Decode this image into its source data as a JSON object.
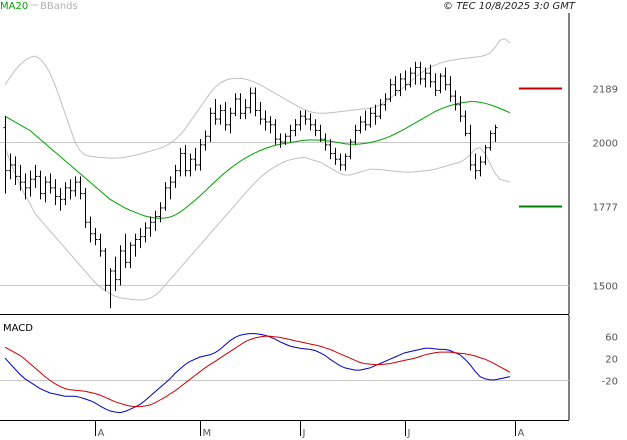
{
  "header": {
    "legend_ma": "MA20",
    "legend_bb": "BBands",
    "copyright": "© TEC 10/8/2025 3:0 GMT"
  },
  "colors": {
    "price": "#000000",
    "ma": "#00a000",
    "bbands": "#c0c0c0",
    "resistance": "#c00000",
    "support": "#008000",
    "macd": "#0000c0",
    "signal": "#d00000",
    "grid": "#c8c8c8"
  },
  "chart_data": [
    {
      "type": "ohlc",
      "ylim": [
        1400,
        2450
      ],
      "y_ticks": [
        {
          "value": 2000,
          "label": "2000"
        },
        {
          "value": 1500,
          "label": "1500"
        }
      ],
      "x_ticks": [
        {
          "index": 18,
          "label": "A"
        },
        {
          "index": 39,
          "label": "M"
        },
        {
          "index": 59,
          "label": "J"
        },
        {
          "index": 80,
          "label": "J"
        },
        {
          "index": 102,
          "label": "A"
        }
      ],
      "levels": [
        {
          "name": "resistance",
          "value": 2189,
          "label": "2189"
        },
        {
          "name": "support",
          "value": 1777,
          "label": "1777"
        }
      ],
      "ohlc": [
        [
          2050,
          2090,
          1820,
          1900
        ],
        [
          1900,
          1960,
          1870,
          1920
        ],
        [
          1920,
          1950,
          1850,
          1880
        ],
        [
          1880,
          1920,
          1830,
          1860
        ],
        [
          1860,
          1890,
          1800,
          1840
        ],
        [
          1840,
          1900,
          1810,
          1870
        ],
        [
          1870,
          1920,
          1840,
          1880
        ],
        [
          1880,
          1900,
          1800,
          1820
        ],
        [
          1820,
          1880,
          1790,
          1860
        ],
        [
          1860,
          1890,
          1820,
          1840
        ],
        [
          1840,
          1870,
          1780,
          1810
        ],
        [
          1810,
          1840,
          1760,
          1800
        ],
        [
          1800,
          1860,
          1780,
          1840
        ],
        [
          1840,
          1870,
          1800,
          1830
        ],
        [
          1830,
          1880,
          1810,
          1860
        ],
        [
          1860,
          1880,
          1800,
          1820
        ],
        [
          1820,
          1840,
          1700,
          1720
        ],
        [
          1720,
          1740,
          1650,
          1680
        ],
        [
          1680,
          1700,
          1640,
          1660
        ],
        [
          1660,
          1680,
          1600,
          1620
        ],
        [
          1620,
          1630,
          1480,
          1500
        ],
        [
          1500,
          1560,
          1420,
          1550
        ],
        [
          1550,
          1600,
          1480,
          1520
        ],
        [
          1520,
          1640,
          1500,
          1620
        ],
        [
          1620,
          1680,
          1560,
          1580
        ],
        [
          1580,
          1650,
          1560,
          1640
        ],
        [
          1640,
          1680,
          1600,
          1660
        ],
        [
          1660,
          1700,
          1630,
          1670
        ],
        [
          1670,
          1720,
          1650,
          1700
        ],
        [
          1700,
          1740,
          1670,
          1720
        ],
        [
          1720,
          1760,
          1690,
          1740
        ],
        [
          1740,
          1790,
          1720,
          1770
        ],
        [
          1770,
          1860,
          1760,
          1840
        ],
        [
          1840,
          1880,
          1800,
          1860
        ],
        [
          1860,
          1920,
          1840,
          1900
        ],
        [
          1900,
          1980,
          1880,
          1960
        ],
        [
          1960,
          1990,
          1880,
          1900
        ],
        [
          1900,
          1960,
          1880,
          1940
        ],
        [
          1940,
          1980,
          1900,
          1920
        ],
        [
          1920,
          2010,
          1900,
          1990
        ],
        [
          1990,
          2040,
          1970,
          2020
        ],
        [
          2020,
          2120,
          2000,
          2100
        ],
        [
          2100,
          2150,
          2060,
          2080
        ],
        [
          2080,
          2130,
          2060,
          2110
        ],
        [
          2110,
          2140,
          2040,
          2060
        ],
        [
          2060,
          2120,
          2030,
          2100
        ],
        [
          2100,
          2170,
          2090,
          2150
        ],
        [
          2150,
          2170,
          2080,
          2100
        ],
        [
          2100,
          2150,
          2080,
          2120
        ],
        [
          2120,
          2190,
          2100,
          2170
        ],
        [
          2170,
          2190,
          2090,
          2110
        ],
        [
          2110,
          2140,
          2060,
          2080
        ],
        [
          2080,
          2110,
          2040,
          2070
        ],
        [
          2070,
          2090,
          2030,
          2060
        ],
        [
          2060,
          2080,
          1990,
          2010
        ],
        [
          2010,
          2030,
          1980,
          2000
        ],
        [
          2000,
          2030,
          1990,
          2020
        ],
        [
          2020,
          2060,
          2000,
          2040
        ],
        [
          2040,
          2080,
          2020,
          2060
        ],
        [
          2060,
          2110,
          2040,
          2090
        ],
        [
          2090,
          2110,
          2060,
          2080
        ],
        [
          2080,
          2100,
          2040,
          2060
        ],
        [
          2060,
          2080,
          2020,
          2040
        ],
        [
          2040,
          2060,
          2000,
          2010
        ],
        [
          2010,
          2030,
          1970,
          1990
        ],
        [
          1990,
          2010,
          1940,
          1960
        ],
        [
          1960,
          1980,
          1920,
          1940
        ],
        [
          1940,
          1960,
          1900,
          1920
        ],
        [
          1920,
          1960,
          1900,
          1950
        ],
        [
          1950,
          2010,
          1940,
          2000
        ],
        [
          2000,
          2060,
          1990,
          2040
        ],
        [
          2040,
          2090,
          2030,
          2070
        ],
        [
          2070,
          2110,
          2040,
          2060
        ],
        [
          2060,
          2120,
          2050,
          2100
        ],
        [
          2100,
          2130,
          2060,
          2090
        ],
        [
          2090,
          2150,
          2080,
          2130
        ],
        [
          2130,
          2170,
          2110,
          2150
        ],
        [
          2150,
          2220,
          2140,
          2200
        ],
        [
          2200,
          2230,
          2160,
          2180
        ],
        [
          2180,
          2240,
          2160,
          2220
        ],
        [
          2220,
          2250,
          2180,
          2200
        ],
        [
          2200,
          2260,
          2190,
          2240
        ],
        [
          2240,
          2280,
          2200,
          2260
        ],
        [
          2260,
          2280,
          2200,
          2220
        ],
        [
          2220,
          2260,
          2190,
          2240
        ],
        [
          2240,
          2270,
          2190,
          2210
        ],
        [
          2210,
          2240,
          2160,
          2180
        ],
        [
          2180,
          2240,
          2170,
          2230
        ],
        [
          2230,
          2260,
          2180,
          2200
        ],
        [
          2200,
          2230,
          2140,
          2160
        ],
        [
          2160,
          2180,
          2110,
          2130
        ],
        [
          2130,
          2160,
          2070,
          2090
        ],
        [
          2090,
          2110,
          2020,
          2030
        ],
        [
          2030,
          2060,
          1900,
          1920
        ],
        [
          1920,
          1960,
          1870,
          1900
        ],
        [
          1900,
          1950,
          1880,
          1930
        ],
        [
          1930,
          1990,
          1920,
          1980
        ],
        [
          1980,
          2040,
          1970,
          2030
        ],
        [
          2030,
          2060,
          2000,
          2050
        ]
      ],
      "ma20": [
        2090,
        2080,
        2070,
        2060,
        2050,
        2040,
        2025,
        2010,
        1995,
        1980,
        1965,
        1950,
        1935,
        1920,
        1905,
        1890,
        1875,
        1860,
        1845,
        1830,
        1815,
        1800,
        1790,
        1780,
        1770,
        1762,
        1755,
        1748,
        1742,
        1738,
        1735,
        1734,
        1735,
        1738,
        1745,
        1755,
        1768,
        1782,
        1797,
        1812,
        1828,
        1845,
        1862,
        1878,
        1893,
        1907,
        1920,
        1932,
        1943,
        1953,
        1962,
        1970,
        1977,
        1983,
        1988,
        1992,
        1995,
        1998,
        2001,
        2004,
        2006,
        2007,
        2007,
        2006,
        2005,
        2003,
        2000,
        1997,
        1994,
        1992,
        1992,
        1993,
        1995,
        1998,
        2002,
        2007,
        2013,
        2020,
        2028,
        2037,
        2046,
        2056,
        2066,
        2076,
        2086,
        2096,
        2106,
        2114,
        2121,
        2127,
        2132,
        2136,
        2139,
        2141,
        2141,
        2139,
        2135,
        2130,
        2124,
        2117,
        2110,
        2102
      ],
      "bb_upper": [
        2200,
        2225,
        2250,
        2270,
        2285,
        2295,
        2300,
        2290,
        2270,
        2240,
        2200,
        2150,
        2100,
        2050,
        2000,
        1970,
        1955,
        1950,
        1948,
        1946,
        1945,
        1944,
        1944,
        1945,
        1947,
        1950,
        1954,
        1958,
        1963,
        1968,
        1973,
        1978,
        1985,
        1995,
        2008,
        2025,
        2045,
        2070,
        2095,
        2120,
        2145,
        2170,
        2190,
        2205,
        2215,
        2220,
        2222,
        2222,
        2220,
        2215,
        2208,
        2200,
        2190,
        2180,
        2170,
        2160,
        2150,
        2140,
        2130,
        2120,
        2112,
        2106,
        2102,
        2100,
        2100,
        2102,
        2104,
        2106,
        2108,
        2110,
        2112,
        2114,
        2116,
        2118,
        2122,
        2130,
        2140,
        2152,
        2165,
        2180,
        2195,
        2210,
        2225,
        2238,
        2250,
        2260,
        2268,
        2275,
        2280,
        2284,
        2287,
        2290,
        2292,
        2294,
        2296,
        2298,
        2302,
        2310,
        2330,
        2355,
        2360,
        2345
      ],
      "bb_lower": [
        1980,
        1935,
        1890,
        1850,
        1815,
        1785,
        1750,
        1730,
        1710,
        1690,
        1670,
        1650,
        1630,
        1610,
        1590,
        1570,
        1550,
        1530,
        1510,
        1495,
        1482,
        1470,
        1462,
        1457,
        1454,
        1452,
        1450,
        1449,
        1450,
        1455,
        1465,
        1480,
        1500,
        1520,
        1540,
        1560,
        1580,
        1600,
        1620,
        1640,
        1660,
        1680,
        1700,
        1720,
        1740,
        1760,
        1780,
        1800,
        1820,
        1840,
        1858,
        1875,
        1890,
        1903,
        1914,
        1924,
        1932,
        1938,
        1942,
        1945,
        1946,
        1940,
        1935,
        1930,
        1920,
        1910,
        1900,
        1890,
        1885,
        1885,
        1890,
        1895,
        1900,
        1905,
        1905,
        1904,
        1902,
        1900,
        1898,
        1896,
        1895,
        1895,
        1896,
        1898,
        1900,
        1902,
        1905,
        1910,
        1915,
        1920,
        1925,
        1930,
        1940,
        1955,
        1975,
        1980,
        1960,
        1925,
        1890,
        1870,
        1865,
        1860
      ]
    },
    {
      "type": "line",
      "title": "MACD",
      "ylim": [
        -90,
        90
      ],
      "y_ticks": [
        {
          "value": 60,
          "label": "60"
        },
        {
          "value": 20,
          "label": "20"
        },
        {
          "value": -20,
          "label": "-20"
        }
      ],
      "series": [
        {
          "key": "macd",
          "values": [
            20,
            10,
            0,
            -10,
            -18,
            -24,
            -30,
            -36,
            -40,
            -44,
            -46,
            -48,
            -50,
            -50,
            -50,
            -52,
            -55,
            -58,
            -62,
            -68,
            -73,
            -77,
            -79,
            -80,
            -78,
            -74,
            -70,
            -65,
            -58,
            -50,
            -42,
            -34,
            -26,
            -18,
            -8,
            0,
            8,
            14,
            18,
            22,
            24,
            26,
            30,
            36,
            44,
            52,
            58,
            62,
            64,
            65,
            65,
            64,
            62,
            59,
            55,
            50,
            46,
            42,
            40,
            38,
            37,
            36,
            34,
            30,
            25,
            18,
            12,
            6,
            2,
            0,
            -2,
            -2,
            0,
            2,
            6,
            10,
            14,
            18,
            22,
            26,
            30,
            32,
            34,
            36,
            38,
            38,
            37,
            36,
            36,
            34,
            30,
            26,
            18,
            8,
            -4,
            -14,
            -18,
            -20,
            -20,
            -18,
            -16,
            -14
          ]
        },
        {
          "key": "signal",
          "values": [
            40,
            35,
            30,
            25,
            18,
            10,
            2,
            -6,
            -14,
            -21,
            -27,
            -32,
            -36,
            -38,
            -39,
            -40,
            -41,
            -43,
            -45,
            -48,
            -52,
            -56,
            -60,
            -63,
            -66,
            -68,
            -69,
            -69,
            -68,
            -66,
            -62,
            -57,
            -52,
            -46,
            -40,
            -33,
            -26,
            -19,
            -12,
            -5,
            2,
            8,
            14,
            20,
            26,
            32,
            38,
            44,
            50,
            54,
            57,
            59,
            60,
            60,
            59,
            58,
            56,
            54,
            52,
            50,
            48,
            46,
            44,
            42,
            39,
            36,
            32,
            28,
            24,
            20,
            16,
            12,
            10,
            9,
            8,
            8,
            9,
            10,
            12,
            14,
            16,
            18,
            20,
            23,
            26,
            28,
            30,
            31,
            31,
            31,
            30,
            29,
            28,
            26,
            24,
            21,
            18,
            14,
            9,
            4,
            -1,
            -6
          ]
        }
      ]
    }
  ]
}
